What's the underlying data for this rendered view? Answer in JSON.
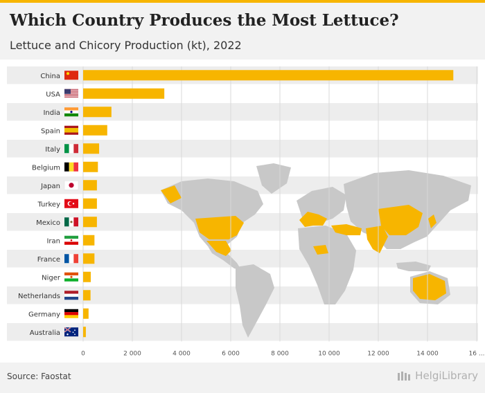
{
  "header": {
    "title": "Which Country Produces the Most Lettuce?",
    "subtitle": "Lettuce and Chicory Production (kt), 2022"
  },
  "footer": {
    "source": "Source: Faostat",
    "brand": "HelgiLibrary"
  },
  "colors": {
    "bar": "#f7b500",
    "band": "#ededed",
    "map_land": "#c8c8c8",
    "map_highlight": "#f7b500"
  },
  "chart_data": {
    "type": "bar",
    "orientation": "horizontal",
    "categories": [
      "China",
      "USA",
      "India",
      "Spain",
      "Italy",
      "Belgium",
      "Japan",
      "Turkey",
      "Mexico",
      "Iran",
      "France",
      "Niger",
      "Netherlands",
      "Germany",
      "Australia"
    ],
    "values": [
      15050,
      3300,
      1150,
      980,
      650,
      600,
      560,
      560,
      560,
      460,
      460,
      310,
      300,
      220,
      110
    ],
    "flags": [
      "china",
      "usa",
      "india",
      "spain",
      "italy",
      "belgium",
      "japan",
      "turkey",
      "mexico",
      "iran",
      "france",
      "niger",
      "netherlands",
      "germany",
      "australia"
    ],
    "x_ticks": [
      "0",
      "2 000",
      "4 000",
      "6 000",
      "8 000",
      "10 000",
      "12 000",
      "14 000",
      "16 ..."
    ],
    "xlim": [
      0,
      16000
    ],
    "grid": true,
    "bar_color": "#f7b500"
  }
}
